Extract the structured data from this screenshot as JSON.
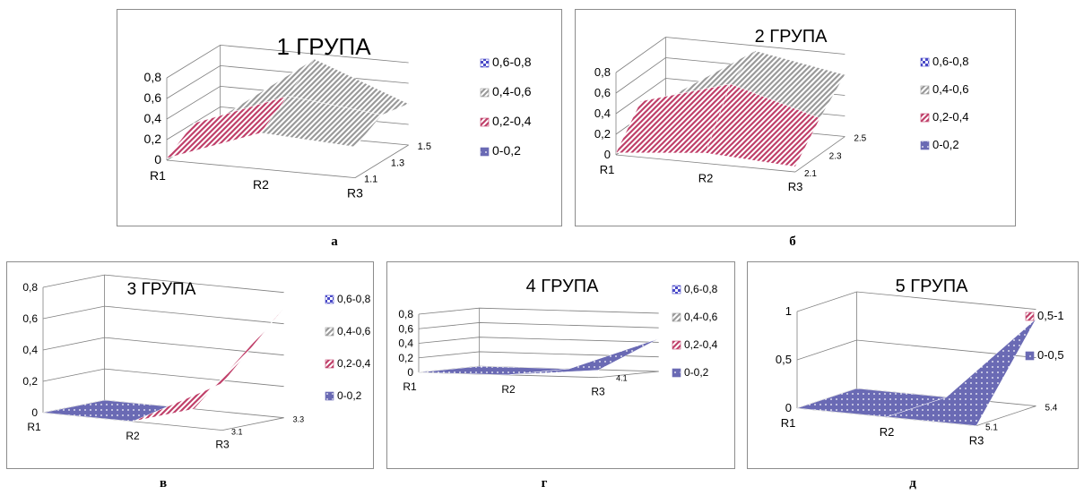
{
  "chart_data": [
    {
      "type": "surface",
      "title": "1 ГРУПА",
      "caption": "а",
      "x_categories": [
        "R1",
        "R2",
        "R3"
      ],
      "depth_ticks": [
        "1.1",
        "1.3",
        "1.5"
      ],
      "z_ticks": [
        "0",
        "0,2",
        "0,4",
        "0,6",
        "0,8"
      ],
      "zlim": [
        0,
        0.8
      ],
      "legend": [
        {
          "label": "0,6-0,8",
          "color": "#4a4ac8",
          "pattern": "check"
        },
        {
          "label": "0,4-0,6",
          "color": "#9a9a9a",
          "pattern": "diag"
        },
        {
          "label": "0,2-0,4",
          "color": "#c0406a",
          "pattern": "diag"
        },
        {
          "label": "0-0,2",
          "color": "#6a6ab4",
          "pattern": "dots"
        }
      ],
      "values": [
        [
          0.02,
          0.2,
          0.1
        ],
        [
          0.35,
          0.55,
          0.75
        ],
        [
          0.3,
          0.45,
          0.4
        ]
      ]
    },
    {
      "type": "surface",
      "title": "2 ГРУПА",
      "caption": "б",
      "x_categories": [
        "R1",
        "R2",
        "R3"
      ],
      "depth_ticks": [
        "2.1",
        "2.3",
        "2.5"
      ],
      "z_ticks": [
        "0",
        "0,2",
        "0,4",
        "0,6",
        "0,8"
      ],
      "zlim": [
        0,
        0.8
      ],
      "legend": [
        {
          "label": "0,6-0,8",
          "color": "#4a4ac8",
          "pattern": "check"
        },
        {
          "label": "0,4-0,6",
          "color": "#9a9a9a",
          "pattern": "diag"
        },
        {
          "label": "0,2-0,4",
          "color": "#c0406a",
          "pattern": "diag"
        },
        {
          "label": "0-0,2",
          "color": "#6a6ab4",
          "pattern": "dots"
        }
      ],
      "values": [
        [
          0.02,
          0.35,
          0.2
        ],
        [
          0.1,
          0.6,
          0.75
        ],
        [
          0.05,
          0.35,
          0.6
        ]
      ]
    },
    {
      "type": "surface",
      "title": "3 ГРУПА",
      "caption": "в",
      "x_categories": [
        "R1",
        "R2",
        "R3"
      ],
      "depth_ticks": [
        "3.1",
        "3.3"
      ],
      "z_ticks": [
        "0",
        "0,2",
        "0,4",
        "0,6",
        "0,8"
      ],
      "zlim": [
        0,
        0.8
      ],
      "legend": [
        {
          "label": "0,6-0,8",
          "color": "#4a4ac8",
          "pattern": "check"
        },
        {
          "label": "0,4-0,6",
          "color": "#9a9a9a",
          "pattern": "diag"
        },
        {
          "label": "0,2-0,4",
          "color": "#c0406a",
          "pattern": "diag"
        },
        {
          "label": "0-0,2",
          "color": "#6a6ab4",
          "pattern": "dots"
        }
      ],
      "values": [
        [
          0.0,
          0.0
        ],
        [
          0.0,
          0.0
        ],
        [
          0.3,
          0.7
        ]
      ]
    },
    {
      "type": "surface",
      "title": "4 ГРУПА",
      "caption": "г",
      "x_categories": [
        "R1",
        "R2",
        "R3"
      ],
      "depth_ticks": [
        "4.1"
      ],
      "z_ticks": [
        "0",
        "0,2",
        "0,4",
        "0,6",
        "0,8"
      ],
      "zlim": [
        0,
        0.8
      ],
      "legend": [
        {
          "label": "0,6-0,8",
          "color": "#4a4ac8",
          "pattern": "check"
        },
        {
          "label": "0,4-0,6",
          "color": "#9a9a9a",
          "pattern": "diag"
        },
        {
          "label": "0,2-0,4",
          "color": "#c0406a",
          "pattern": "diag"
        },
        {
          "label": "0-0,2",
          "color": "#6a6ab4",
          "pattern": "dots"
        }
      ],
      "values": [
        [
          0.0,
          0.0
        ],
        [
          0.0,
          0.0
        ],
        [
          0.1,
          0.45
        ]
      ]
    },
    {
      "type": "surface",
      "title": "5 ГРУПА",
      "caption": "д",
      "x_categories": [
        "R1",
        "R2",
        "R3"
      ],
      "depth_ticks": [
        "5.1",
        "5.4"
      ],
      "z_ticks": [
        "0",
        "0,5",
        "1"
      ],
      "zlim": [
        0,
        1
      ],
      "legend": [
        {
          "label": "0,5-1",
          "color": "#c0406a",
          "pattern": "diag"
        },
        {
          "label": "0-0,5",
          "color": "#6a6ab4",
          "pattern": "dots"
        }
      ],
      "values": [
        [
          0.0,
          0.0
        ],
        [
          0.0,
          0.0
        ],
        [
          0.0,
          0.9
        ]
      ]
    }
  ]
}
